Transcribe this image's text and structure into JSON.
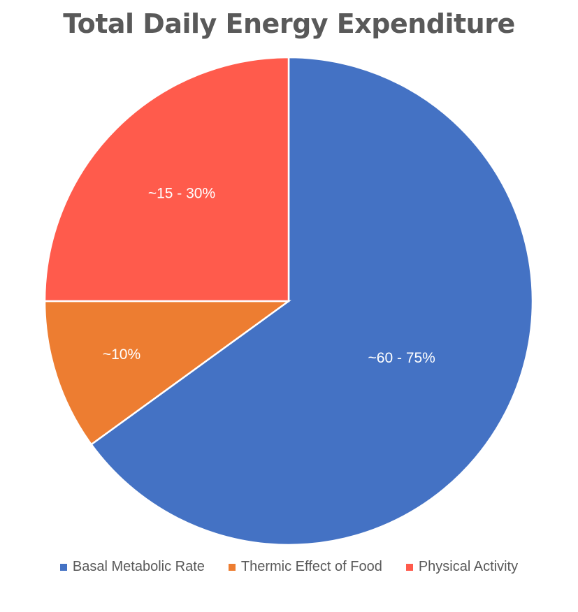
{
  "chart_data": {
    "type": "pie",
    "title": "Total Daily Energy Expenditure",
    "slices": [
      {
        "name": "Basal Metabolic Rate",
        "value": 65,
        "label": "~60 - 75%",
        "color": "#4472C4"
      },
      {
        "name": "Thermic Effect of Food",
        "value": 10,
        "label": "~10%",
        "color": "#ED7D31"
      },
      {
        "name": "Physical Activity",
        "value": 25,
        "label": "~15 - 30%",
        "color": "#FF5B4C"
      }
    ],
    "start_angle_deg": 0,
    "direction": "clockwise",
    "legend_position": "bottom"
  }
}
